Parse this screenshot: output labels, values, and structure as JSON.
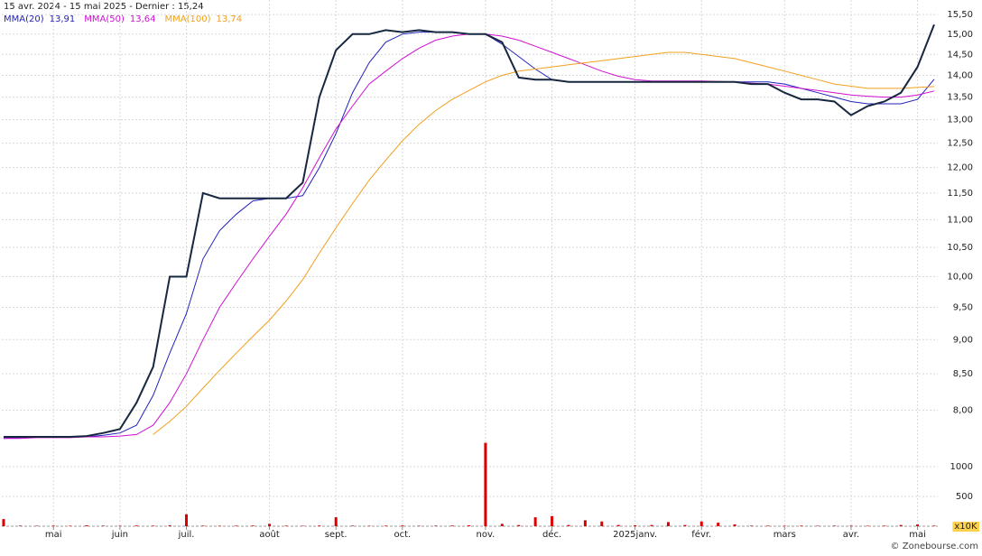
{
  "chart_data": {
    "type": "line",
    "title": "15 avr. 2024 - 15 mai 2025 - Dernier : 15,24",
    "credit": "© Zonebourse.com",
    "log_scale": true,
    "grid": true,
    "categories": [
      null,
      null,
      null,
      "mai",
      null,
      null,
      null,
      "juin",
      null,
      null,
      null,
      "juil.",
      null,
      null,
      null,
      null,
      "août",
      null,
      null,
      null,
      "sept.",
      null,
      null,
      null,
      "oct.",
      null,
      null,
      null,
      null,
      "nov.",
      null,
      null,
      null,
      "déc.",
      null,
      null,
      null,
      null,
      "2025janv.",
      null,
      null,
      null,
      "févr.",
      null,
      null,
      null,
      null,
      "mars",
      null,
      null,
      null,
      "avr.",
      null,
      null,
      null,
      "mai",
      null
    ],
    "price": {
      "color": "#17273f",
      "values": [
        7.65,
        7.65,
        7.65,
        7.65,
        7.65,
        7.66,
        7.7,
        7.75,
        8.1,
        8.6,
        10.0,
        10.0,
        11.5,
        11.4,
        11.4,
        11.4,
        11.4,
        11.4,
        11.7,
        13.5,
        14.6,
        15.0,
        15.0,
        15.1,
        15.05,
        15.1,
        15.05,
        15.05,
        15.0,
        15.0,
        14.8,
        13.95,
        13.9,
        13.9,
        13.85,
        13.85,
        13.85,
        13.85,
        13.85,
        13.85,
        13.85,
        13.85,
        13.85,
        13.85,
        13.85,
        13.8,
        13.8,
        13.6,
        13.45,
        13.45,
        13.4,
        13.1,
        13.3,
        13.4,
        13.6,
        14.2,
        15.24
      ]
    },
    "series": [
      {
        "name": "MMA(20)",
        "last_label": "13,91",
        "color": "#2222bb",
        "values": [
          7.63,
          7.64,
          7.65,
          7.65,
          7.65,
          7.65,
          7.67,
          7.7,
          7.8,
          8.2,
          8.8,
          9.4,
          10.3,
          10.8,
          11.1,
          11.35,
          11.4,
          11.4,
          11.45,
          12.0,
          12.7,
          13.6,
          14.3,
          14.8,
          15.0,
          15.05,
          15.05,
          15.05,
          15.0,
          15.0,
          14.75,
          14.45,
          14.15,
          13.9,
          13.85,
          13.85,
          13.85,
          13.85,
          13.85,
          13.85,
          13.85,
          13.85,
          13.85,
          13.85,
          13.85,
          13.85,
          13.85,
          13.8,
          13.7,
          13.6,
          13.5,
          13.4,
          13.35,
          13.35,
          13.35,
          13.45,
          13.91
        ]
      },
      {
        "name": "MMA(50)",
        "last_label": "13,64",
        "color": "#d010d0",
        "values": [
          7.63,
          7.63,
          7.64,
          7.64,
          7.64,
          7.65,
          7.65,
          7.66,
          7.68,
          7.8,
          8.1,
          8.5,
          9.0,
          9.5,
          9.9,
          10.3,
          10.7,
          11.1,
          11.6,
          12.2,
          12.8,
          13.3,
          13.8,
          14.1,
          14.4,
          14.65,
          14.85,
          14.95,
          15.0,
          15.0,
          14.95,
          14.85,
          14.7,
          14.55,
          14.4,
          14.25,
          14.1,
          13.98,
          13.9,
          13.87,
          13.87,
          13.87,
          13.87,
          13.86,
          13.85,
          13.82,
          13.8,
          13.75,
          13.7,
          13.65,
          13.6,
          13.55,
          13.52,
          13.5,
          13.5,
          13.55,
          13.64
        ]
      },
      {
        "name": "MMA(100)",
        "last_label": "13,74",
        "color": "#f0a020",
        "values": [
          null,
          null,
          null,
          null,
          null,
          null,
          null,
          null,
          null,
          7.68,
          7.85,
          8.05,
          8.3,
          8.55,
          8.8,
          9.05,
          9.3,
          9.6,
          9.95,
          10.4,
          10.85,
          11.3,
          11.75,
          12.15,
          12.55,
          12.9,
          13.2,
          13.45,
          13.65,
          13.85,
          14.0,
          14.1,
          14.15,
          14.2,
          14.25,
          14.3,
          14.35,
          14.4,
          14.45,
          14.5,
          14.55,
          14.55,
          14.5,
          14.45,
          14.4,
          14.3,
          14.2,
          14.1,
          14.0,
          13.9,
          13.8,
          13.75,
          13.7,
          13.7,
          13.7,
          13.72,
          13.74
        ]
      }
    ],
    "ylim": [
      7.65,
      15.69
    ],
    "yticks": [
      {
        "value": 8,
        "label": "8,00"
      },
      {
        "value": 8.5,
        "label": "8,50"
      },
      {
        "value": 9,
        "label": "9,00"
      },
      {
        "value": 9.5,
        "label": "9,50"
      },
      {
        "value": 10,
        "label": "10,00"
      },
      {
        "value": 10.5,
        "label": "10,50"
      },
      {
        "value": 11,
        "label": "11,00"
      },
      {
        "value": 11.5,
        "label": "11,50"
      },
      {
        "value": 12,
        "label": "12,00"
      },
      {
        "value": 12.5,
        "label": "12,50"
      },
      {
        "value": 13,
        "label": "13,00"
      },
      {
        "value": 13.5,
        "label": "13,50"
      },
      {
        "value": 14,
        "label": "14,00"
      },
      {
        "value": 14.5,
        "label": "14,50"
      },
      {
        "value": 15,
        "label": "15,00"
      },
      {
        "value": 15.5,
        "label": "15,50"
      }
    ],
    "volume": {
      "unit_label": "x10K",
      "color": "#dd0000",
      "ylim": [
        0,
        1500
      ],
      "yticks": [
        500,
        1000
      ],
      "values": [
        120,
        10,
        8,
        10,
        8,
        15,
        10,
        8,
        12,
        10,
        15,
        200,
        10,
        8,
        10,
        12,
        40,
        10,
        8,
        12,
        150,
        10,
        8,
        10,
        12,
        8,
        10,
        12,
        15,
        1400,
        40,
        20,
        150,
        170,
        20,
        100,
        80,
        20,
        15,
        20,
        70,
        20,
        80,
        60,
        30,
        10,
        10,
        8,
        10,
        8,
        10,
        10,
        8,
        10,
        20,
        30,
        10
      ]
    }
  }
}
